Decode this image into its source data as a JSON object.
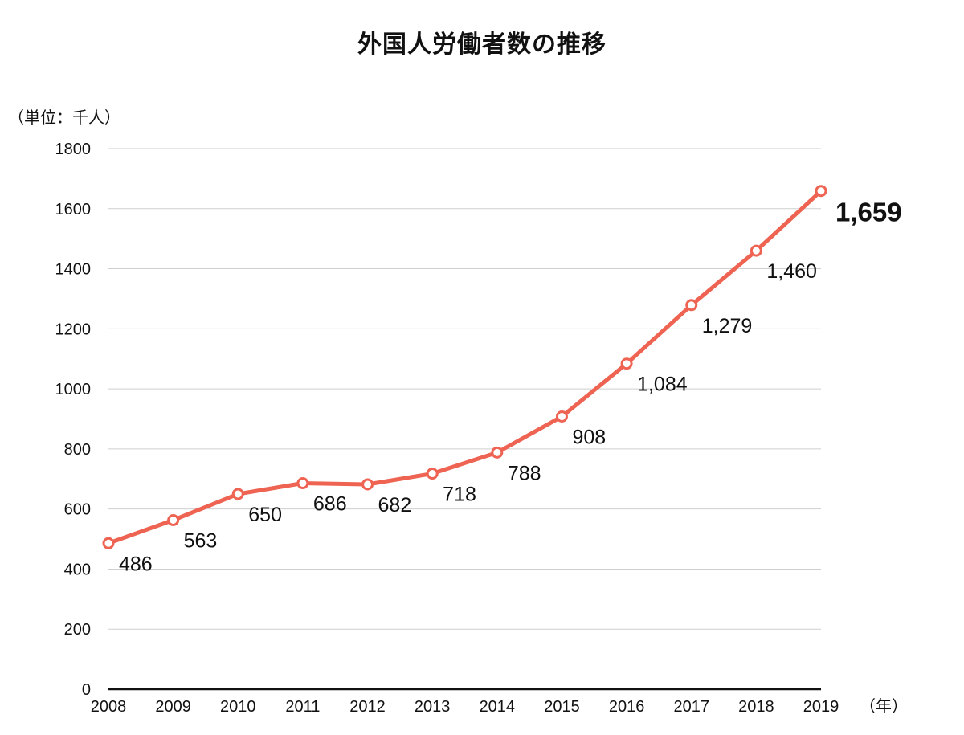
{
  "chart_data": {
    "type": "line",
    "title": "外国人労働者数の推移",
    "ylabel": "（単位：千人）",
    "xlabel": "（年）",
    "categories": [
      "2008",
      "2009",
      "2010",
      "2011",
      "2012",
      "2013",
      "2014",
      "2015",
      "2016",
      "2017",
      "2018",
      "2019"
    ],
    "series": [
      {
        "values": [
          486,
          563,
          650,
          686,
          682,
          718,
          788,
          908,
          1084,
          1279,
          1460,
          1659
        ]
      }
    ],
    "data_labels": [
      "486",
      "563",
      "650",
      "686",
      "682",
      "718",
      "788",
      "908",
      "1,084",
      "1,279",
      "1,460",
      "1,659"
    ],
    "ylim": [
      0,
      1800
    ],
    "yticks": [
      0,
      200,
      400,
      600,
      800,
      1000,
      1200,
      1400,
      1600,
      1800
    ],
    "grid": true,
    "line_color": "#EE6352",
    "grid_color": "#CFCFCF",
    "axis_color": "#111111"
  }
}
